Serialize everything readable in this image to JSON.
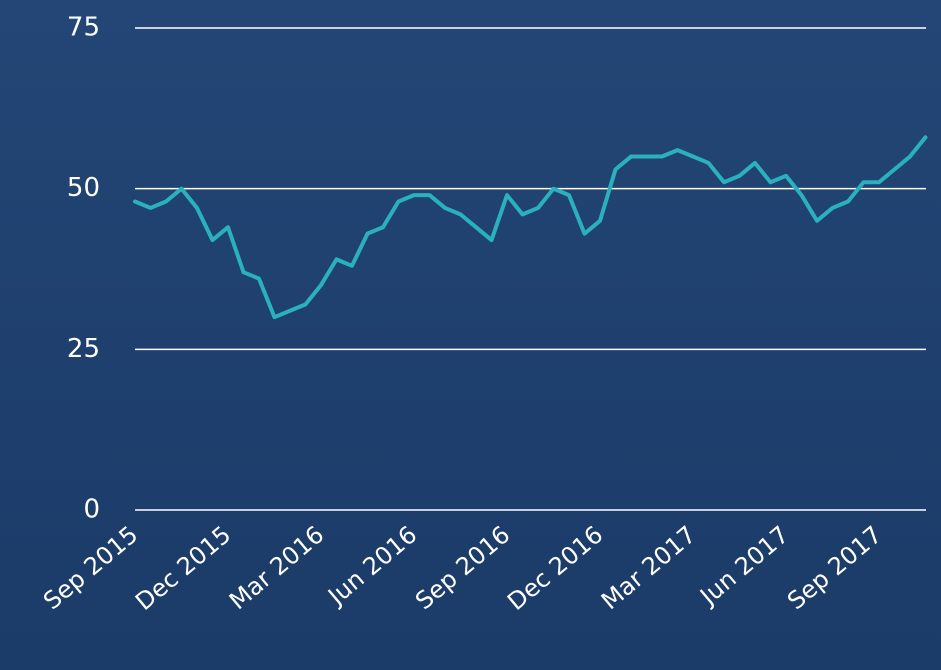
{
  "chart_data": {
    "type": "line",
    "categories": [
      "Sep 2015",
      null,
      null,
      null,
      null,
      null,
      "Dec 2015",
      null,
      null,
      null,
      null,
      null,
      "Mar 2016",
      null,
      null,
      null,
      null,
      null,
      "Jun 2016",
      null,
      null,
      null,
      null,
      null,
      "Sep 2016",
      null,
      null,
      null,
      null,
      null,
      "Dec 2016",
      null,
      null,
      null,
      null,
      null,
      "Mar 2017",
      null,
      null,
      null,
      null,
      null,
      "Jun 2017",
      null,
      null,
      null,
      null,
      null,
      "Sep 2017",
      null,
      null,
      null
    ],
    "series": [
      {
        "color": "#2ab0bf",
        "values": [
          48,
          47,
          48,
          50,
          47,
          42,
          44,
          37,
          36,
          30,
          31,
          32,
          35,
          39,
          38,
          43,
          44,
          48,
          49,
          49,
          47,
          46,
          44,
          42,
          49,
          46,
          47,
          50,
          49,
          43,
          45,
          53,
          55,
          55,
          55,
          56,
          55,
          54,
          51,
          52,
          54,
          51,
          52,
          49,
          45,
          47,
          48,
          51,
          51,
          53,
          55,
          58
        ]
      }
    ],
    "ylim": [
      0,
      75
    ],
    "yticks": [
      0,
      25,
      50,
      75
    ],
    "grid": true
  }
}
